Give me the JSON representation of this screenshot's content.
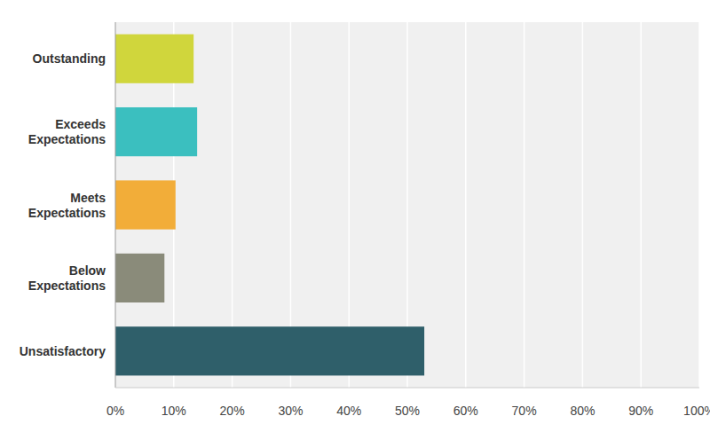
{
  "chart_data": {
    "type": "bar",
    "orientation": "horizontal",
    "categories": [
      "Outstanding",
      "Exceeds Expectations",
      "Meets Expectations",
      "Below Expectations",
      "Unsatisfactory"
    ],
    "values": [
      13.4,
      14.0,
      10.3,
      8.4,
      52.9
    ],
    "colors": [
      "#d0d63c",
      "#3bbfbf",
      "#f2ad39",
      "#8a8b7a",
      "#2f5f6a"
    ],
    "xlim": [
      0,
      100
    ],
    "xticks": [
      {
        "value": 0,
        "label": "0%"
      },
      {
        "value": 10,
        "label": "10%"
      },
      {
        "value": 20,
        "label": "20%"
      },
      {
        "value": 30,
        "label": "30%"
      },
      {
        "value": 40,
        "label": "40%"
      },
      {
        "value": 50,
        "label": "50%"
      },
      {
        "value": 60,
        "label": "60%"
      },
      {
        "value": 70,
        "label": "70%"
      },
      {
        "value": 80,
        "label": "80%"
      },
      {
        "value": 90,
        "label": "90%"
      },
      {
        "value": 100,
        "label": "100%"
      }
    ],
    "grid": true
  }
}
